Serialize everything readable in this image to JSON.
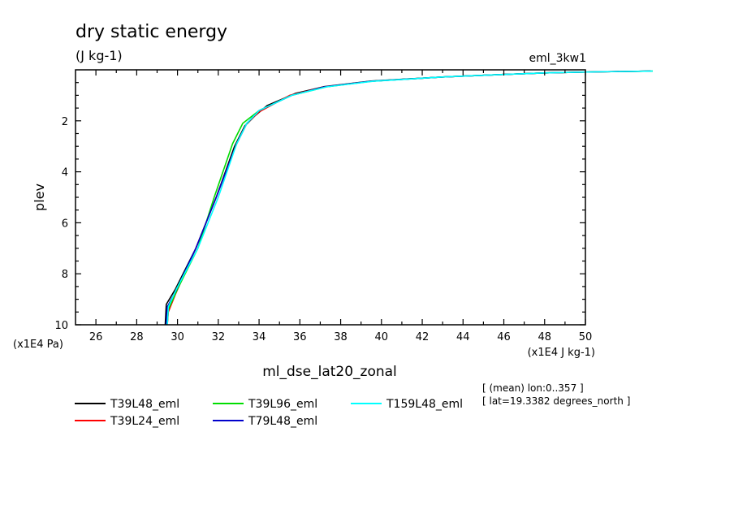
{
  "chart_data": {
    "type": "line",
    "title": "dry static energy",
    "subtitle": "(J kg-1)",
    "run_label": "eml_3kw1",
    "xlabel": "ml_dse_lat20_zonal",
    "ylabel": "plev",
    "x_unit": "(x1E4 J kg-1)",
    "y_unit": "(x1E4 Pa)",
    "xlim": [
      25,
      50
    ],
    "ylim": [
      10,
      0
    ],
    "x_ticks": [
      26,
      28,
      30,
      32,
      34,
      36,
      38,
      40,
      42,
      44,
      46,
      48,
      50
    ],
    "y_ticks": [
      2,
      4,
      6,
      8,
      10
    ],
    "notes": [
      "[ (mean) lon:0..357 ]",
      "[ lat=19.3382 degrees_north ]"
    ],
    "grid": false,
    "legend_position": "bottom",
    "series": [
      {
        "name": "T39L48_eml",
        "color": "#000000",
        "points": [
          [
            29.4,
            10
          ],
          [
            29.45,
            9.2
          ],
          [
            29.9,
            8.6
          ],
          [
            30.9,
            7.0
          ],
          [
            31.9,
            5.0
          ],
          [
            32.8,
            3.0
          ],
          [
            33.3,
            2.2
          ],
          [
            33.8,
            1.8
          ],
          [
            34.4,
            1.4
          ],
          [
            35.8,
            0.92
          ],
          [
            37.2,
            0.66
          ],
          [
            39.5,
            0.44
          ],
          [
            43,
            0.28
          ],
          [
            46,
            0.18
          ],
          [
            48,
            0.12
          ],
          [
            50.5,
            0.08
          ],
          [
            53.2,
            0.05
          ]
        ]
      },
      {
        "name": "T39L24_eml",
        "color": "#ff0000",
        "points": [
          [
            29.5,
            10
          ],
          [
            29.55,
            9.5
          ],
          [
            29.9,
            8.8
          ],
          [
            30.9,
            7.0
          ],
          [
            31.9,
            5.0
          ],
          [
            32.9,
            2.9
          ],
          [
            33.4,
            2.1
          ],
          [
            34.0,
            1.65
          ],
          [
            35.5,
            1.0
          ],
          [
            37.2,
            0.67
          ],
          [
            39.5,
            0.45
          ],
          [
            43,
            0.28
          ],
          [
            46,
            0.18
          ],
          [
            48,
            0.12
          ],
          [
            50.5,
            0.08
          ],
          [
            53.2,
            0.05
          ]
        ]
      },
      {
        "name": "T39L96_eml",
        "color": "#00dd00",
        "points": [
          [
            29.5,
            10
          ],
          [
            29.55,
            9.4
          ],
          [
            30.0,
            8.6
          ],
          [
            31.0,
            7.0
          ],
          [
            31.8,
            5.0
          ],
          [
            32.7,
            2.9
          ],
          [
            33.2,
            2.1
          ],
          [
            34.0,
            1.6
          ],
          [
            35.6,
            1.0
          ],
          [
            37.3,
            0.67
          ],
          [
            39.5,
            0.45
          ],
          [
            43,
            0.28
          ],
          [
            46,
            0.18
          ],
          [
            48,
            0.12
          ],
          [
            50.5,
            0.08
          ],
          [
            53.3,
            0.05
          ]
        ]
      },
      {
        "name": "T79L48_eml",
        "color": "#0000cc",
        "points": [
          [
            29.45,
            10
          ],
          [
            29.5,
            9.3
          ],
          [
            29.9,
            8.7
          ],
          [
            30.9,
            7.0
          ],
          [
            31.9,
            5.0
          ],
          [
            32.9,
            2.9
          ],
          [
            33.4,
            2.1
          ],
          [
            34.0,
            1.6
          ],
          [
            35.6,
            1.0
          ],
          [
            37.2,
            0.67
          ],
          [
            39.5,
            0.45
          ],
          [
            43,
            0.28
          ],
          [
            46,
            0.18
          ],
          [
            48,
            0.12
          ],
          [
            50.5,
            0.08
          ],
          [
            53.2,
            0.05
          ]
        ]
      },
      {
        "name": "T159L48_eml",
        "color": "#00ffff",
        "points": [
          [
            29.5,
            10
          ],
          [
            29.55,
            9.3
          ],
          [
            29.95,
            8.6
          ],
          [
            31.0,
            7.0
          ],
          [
            32.0,
            5.0
          ],
          [
            32.9,
            2.9
          ],
          [
            33.4,
            2.1
          ],
          [
            34.0,
            1.6
          ],
          [
            35.6,
            1.0
          ],
          [
            37.3,
            0.67
          ],
          [
            39.6,
            0.45
          ],
          [
            43,
            0.28
          ],
          [
            46,
            0.18
          ],
          [
            48,
            0.12
          ],
          [
            50.5,
            0.08
          ],
          [
            53.3,
            0.05
          ]
        ]
      }
    ]
  }
}
